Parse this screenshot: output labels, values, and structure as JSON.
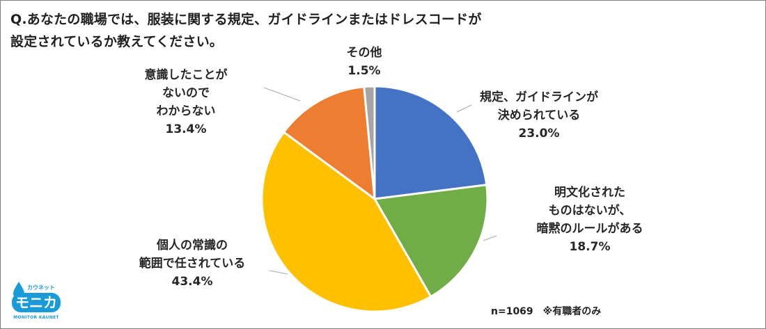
{
  "question": {
    "line1": "Q.あなたの職場では、服装に関する規定、ガイドラインまたはドレスコードが",
    "line2": "設定されているか教えてください。"
  },
  "note": "n=1069　※有職者のみ",
  "logo": {
    "small": "カウネット",
    "big": "モニカ",
    "foot": "MONITOR KAUNET"
  },
  "chart_data": {
    "type": "pie",
    "start_angle_deg": 0,
    "direction": "clockwise",
    "slices": [
      {
        "label_lines": [
          "規定、ガイドラインが",
          "決められている"
        ],
        "value": 23.0,
        "value_label": "23.0%",
        "color": "#4472c4"
      },
      {
        "label_lines": [
          "明文化された",
          "ものはないが、",
          "暗黙のルールがある"
        ],
        "value": 18.7,
        "value_label": "18.7%",
        "color": "#70ad47"
      },
      {
        "label_lines": [
          "個人の常識の",
          "範囲で任されている"
        ],
        "value": 43.4,
        "value_label": "43.4%",
        "color": "#ffc000"
      },
      {
        "label_lines": [
          "意識したことが",
          "ないので",
          "わからない"
        ],
        "value": 13.4,
        "value_label": "13.4%",
        "color": "#ed7d31"
      },
      {
        "label_lines": [
          "その他"
        ],
        "value": 1.5,
        "value_label": "1.5%",
        "color": "#a5a5a5"
      }
    ]
  }
}
